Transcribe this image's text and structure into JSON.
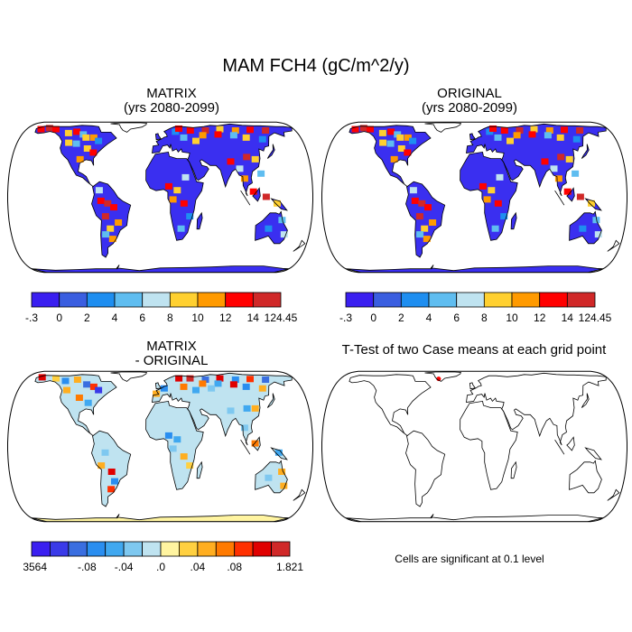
{
  "figure": {
    "title": "MAM FCH4 (gC/m^2/y)",
    "panels": [
      {
        "id": "matrix",
        "title_line1": "MATRIX",
        "title_line2": "(yrs 2080-2099)"
      },
      {
        "id": "original",
        "title_line1": "ORIGINAL",
        "title_line2": "(yrs 2080-2099)"
      },
      {
        "id": "difference",
        "title_line1": "MATRIX",
        "title_line2": "- ORIGINAL"
      },
      {
        "id": "ttest",
        "title_line1": "T-Test of two Case means at each grid point",
        "title_line2": ""
      }
    ],
    "note": "Cells are significant at 0.1 level"
  },
  "colorbars": {
    "main": {
      "colors": [
        "#3a1ff0",
        "#3a5ee0",
        "#1e8ef0",
        "#5fbdf0",
        "#bfe3f0",
        "#ffd030",
        "#ff9a00",
        "#ff0000",
        "#d02828"
      ],
      "labels": [
        "-.3",
        "0",
        "2",
        "4",
        "6",
        "8",
        "10",
        "12",
        "14",
        "124.45"
      ]
    },
    "diff": {
      "colors": [
        "#3a1ff0",
        "#3a3ae8",
        "#3a6ee0",
        "#2a8ef0",
        "#40a8f0",
        "#7ec8f0",
        "#bfe3f0",
        "#fff4a0",
        "#ffd040",
        "#ffae20",
        "#ff7a00",
        "#ff3000",
        "#e00000",
        "#d02828"
      ],
      "labels": [
        "-.3564",
        "-.08",
        "-.04",
        ".0",
        ".04",
        ".08",
        "1.821"
      ]
    }
  },
  "map_fills": {
    "matrix_land": "#3a2ff0",
    "original_land": "#3a2ff0",
    "diff_land": "#bfe3f0",
    "diff_antarctica": "#fff4a0",
    "significant_point": "#ff0000"
  }
}
